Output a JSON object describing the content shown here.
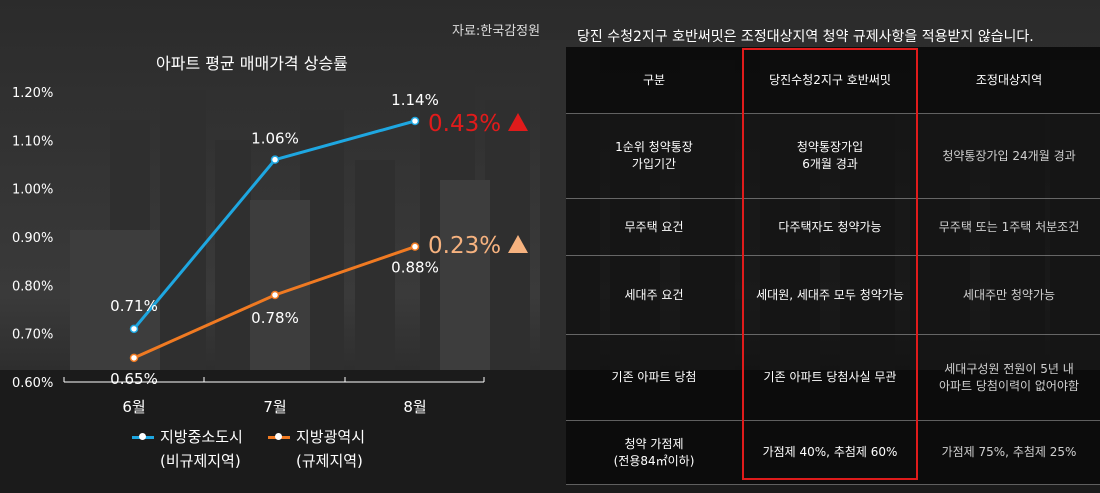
{
  "source": "자료:한국감정원",
  "chart_data": {
    "type": "line",
    "title": "아파트 평균 매매가격 상승률",
    "categories": [
      "6월",
      "7월",
      "8월"
    ],
    "y_ticks": [
      "0.60%",
      "0.70%",
      "0.80%",
      "0.90%",
      "1.00%",
      "1.10%",
      "1.20%"
    ],
    "ylim": [
      0.6,
      1.2
    ],
    "series": [
      {
        "name": "지방중소도시",
        "sub": "(비규제지역)",
        "color": "#1ea7e1",
        "values": [
          0.71,
          1.06,
          1.14
        ],
        "labels": [
          "0.71%",
          "1.06%",
          "1.14%"
        ],
        "change": "0.43%",
        "change_color": "#e01b1b"
      },
      {
        "name": "지방광역시",
        "sub": "(규제지역)",
        "color": "#f07a22",
        "values": [
          0.65,
          0.78,
          0.88
        ],
        "labels": [
          "0.65%",
          "0.78%",
          "0.88%"
        ],
        "change": "0.23%",
        "change_color": "#f6b27f"
      }
    ]
  },
  "table": {
    "title": "당진 수청2지구 호반써밋은 조정대상지역 청약 규제사항을 적용받지 않습니다.",
    "headers": [
      "구분",
      "당진수청2지구 호반써밋",
      "조정대상지역"
    ],
    "rows": [
      {
        "label": "1순위 청약통장\n가입기간",
        "a": "청약통장가입\n6개월 경과",
        "b": "청약통장가입 24개월 경과"
      },
      {
        "label": "무주택 요건",
        "a": "다주택자도 청약가능",
        "b": "무주택 또는 1주택 처분조건"
      },
      {
        "label": "세대주 요건",
        "a": "세대원, 세대주 모두 청약가능",
        "b": "세대주만 청약가능"
      },
      {
        "label": "기존 아파트 당첨",
        "a": "기존 아파트 당첨사실 무관",
        "b": "세대구성원 전원이 5년 내\n아파트 당첨이력이 없어야함"
      },
      {
        "label": "청약 가점제\n(전용84㎡이하)",
        "a": "가점제 40%, 추첨제 60%",
        "b": "가점제 75%, 추첨제 25%"
      }
    ]
  }
}
